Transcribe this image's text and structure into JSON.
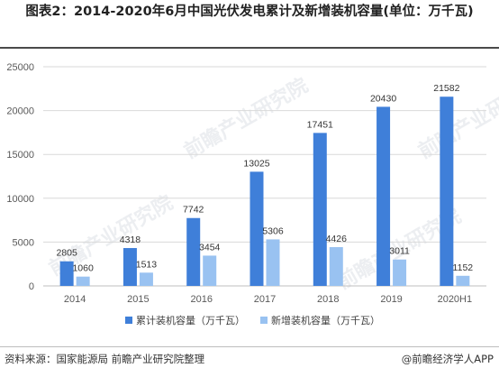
{
  "title": "图表2：2014-2020年6月中国光伏发电累计及新增装机容量(单位：万千瓦)",
  "source": "资料来源：国家能源局 前瞻产业研究院整理",
  "credit": "@前瞻经济学人APP",
  "watermark": "前瞻产业研究院",
  "colors": {
    "cumulative": "#3f7fd9",
    "new": "#99c2f1",
    "grid": "#d9d9d9",
    "axis": "#bfbfbf"
  },
  "chart_data": {
    "type": "bar",
    "categories": [
      "2014",
      "2015",
      "2016",
      "2017",
      "2018",
      "2019",
      "2020H1"
    ],
    "series": [
      {
        "name": "累计装机容量（万千瓦）",
        "values": [
          2805,
          4318,
          7742,
          13025,
          17451,
          20430,
          21582
        ]
      },
      {
        "name": "新增装机容量（万千瓦）",
        "values": [
          1060,
          1513,
          3454,
          5306,
          4426,
          3011,
          1152
        ]
      }
    ],
    "yticks": [
      0,
      5000,
      10000,
      15000,
      20000,
      25000
    ],
    "ylim": [
      0,
      25000
    ],
    "grid": true,
    "legend_position": "bottom"
  }
}
